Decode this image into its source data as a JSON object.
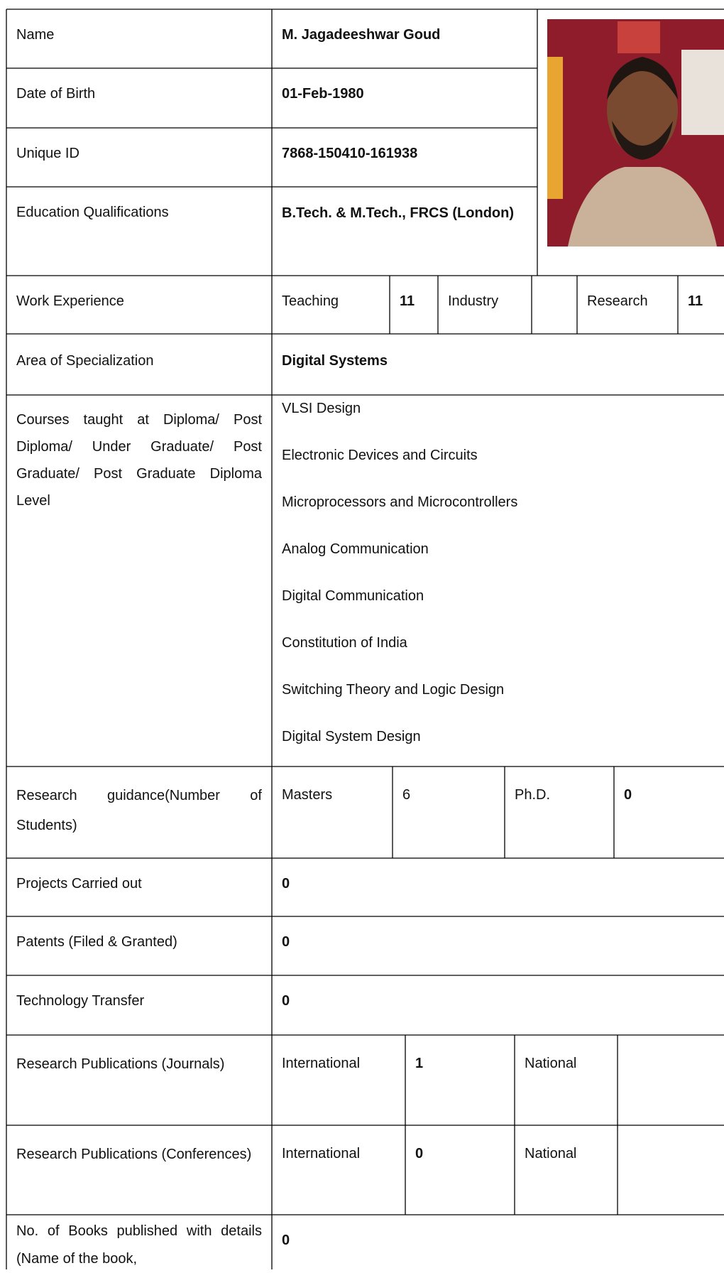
{
  "name": {
    "label": "Name",
    "value": "M. Jagadeeshwar Goud"
  },
  "dob": {
    "label": "Date of Birth",
    "value": "01-Feb-1980"
  },
  "unique_id": {
    "label": "Unique ID",
    "value": "7868-150410-161938"
  },
  "education": {
    "label": "Education Qualifications",
    "value": "B.Tech. & M.Tech., FRCS (London)"
  },
  "work_experience": {
    "label": "Work Experience",
    "teaching_label": "Teaching",
    "teaching": 11,
    "industry_label": "Industry",
    "research_label": "Research",
    "research": 11
  },
  "specialization": {
    "label": "Area of Specialization",
    "value": "Digital Systems"
  },
  "courses": {
    "label": "Courses taught at Diploma/ Post Diploma/ Under Graduate/ Post Graduate/ Post Graduate Diploma Level",
    "items": [
      "VLSI Design",
      "Electronic Devices and Circuits",
      "Microprocessors and Microcontrollers",
      "Analog Communication",
      "Digital Communication",
      "Constitution of India",
      "Switching Theory and Logic Design",
      "Digital System Design"
    ]
  },
  "research_guidance": {
    "label": "Research guidance(Number of Students)",
    "masters_label": "Masters",
    "masters": 6,
    "phd_label": "Ph.D.",
    "phd": 0
  },
  "projects": {
    "label": "Projects Carried out",
    "value": 0
  },
  "patents": {
    "label": "Patents (Filed & Granted)",
    "value": 0
  },
  "technology_transfer": {
    "label": "Technology Transfer",
    "value": 0
  },
  "journals": {
    "label": "Research Publications (Journals)",
    "international_label": "International",
    "international": 1,
    "national_label": "National"
  },
  "conferences": {
    "label": "Research Publications (Conferences)",
    "international_label": "International",
    "international": 0,
    "national_label": "National"
  },
  "books": {
    "label": "No. of Books published with details (Name of the book,",
    "value": 0
  }
}
